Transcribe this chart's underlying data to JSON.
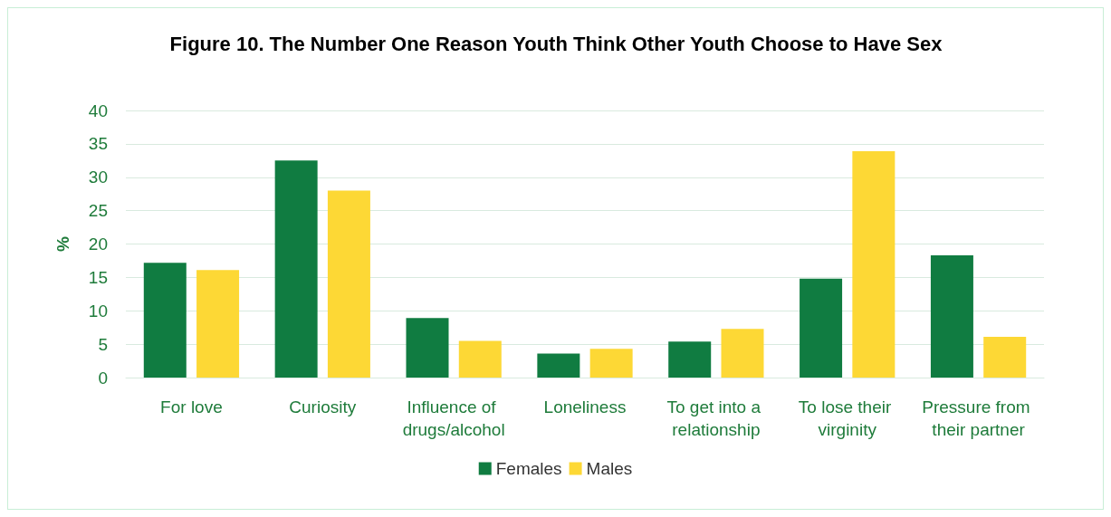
{
  "chart_data": {
    "type": "bar",
    "title": "Figure 10. The Number One Reason Youth Think Other Youth Choose to Have Sex",
    "ylabel": "%",
    "categories": [
      "For love",
      "Curiosity",
      "Influence of drugs/alcohol",
      "Loneliness",
      "To get into a relationship",
      "To lose their virginity",
      "Pressure from their partner"
    ],
    "series": [
      {
        "name": "Females",
        "color": "#107c41",
        "values": [
          17.2,
          32.5,
          8.9,
          3.6,
          5.4,
          14.8,
          18.3
        ]
      },
      {
        "name": "Males",
        "color": "#fdd835",
        "values": [
          16.1,
          28.0,
          5.5,
          4.3,
          7.3,
          33.9,
          6.1
        ]
      }
    ],
    "ylim": [
      0,
      40
    ],
    "yticks": [
      0,
      5,
      10,
      15,
      20,
      25,
      30,
      35,
      40
    ],
    "grid": "y",
    "legend": "bottom"
  }
}
